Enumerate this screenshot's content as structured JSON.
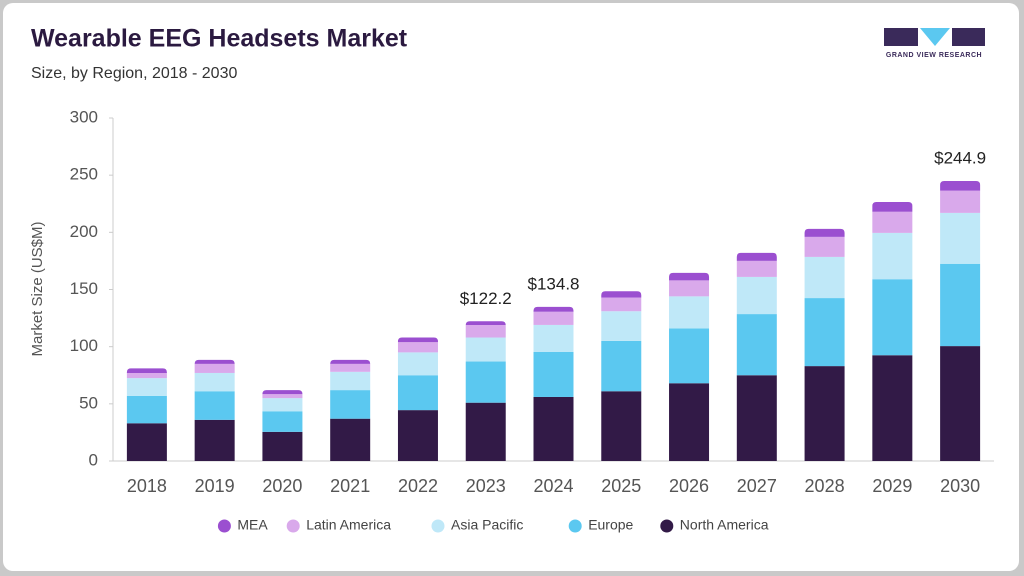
{
  "chart_data": {
    "type": "stacked-bar",
    "title": "Wearable EEG Headsets Market",
    "subtitle": "Size, by Region, 2018 - 2030",
    "source_logo": "GRAND VIEW RESEARCH",
    "y_label": "Market Size (US$M)",
    "categories": [
      "2018",
      "2019",
      "2020",
      "2021",
      "2022",
      "2023",
      "2024",
      "2025",
      "2026",
      "2027",
      "2028",
      "2029",
      "2030"
    ],
    "series": [
      {
        "name": "North America",
        "color": "#321a47",
        "values": [
          33,
          36,
          25.5,
          37,
          44.5,
          51,
          56,
          61,
          68,
          75,
          83,
          92.5,
          100.5
        ]
      },
      {
        "name": "Europe",
        "color": "#5bc8f0",
        "values": [
          24,
          25,
          18,
          25,
          30.5,
          36,
          39.5,
          44,
          48,
          53.5,
          59.5,
          66.5,
          72
        ]
      },
      {
        "name": "Asia Pacific",
        "color": "#bfe8f8",
        "values": [
          15.5,
          16,
          11.5,
          16,
          20,
          21,
          23.5,
          26,
          28,
          32.5,
          36,
          40.5,
          44.5
        ]
      },
      {
        "name": "Latin America",
        "color": "#d9a9eb",
        "values": [
          4.5,
          8,
          3.5,
          7,
          9,
          11,
          11.5,
          12,
          14,
          14,
          17.5,
          18.5,
          19.5
        ]
      },
      {
        "name": "MEA",
        "color": "#9b4fd0",
        "values": [
          4,
          3.5,
          3.5,
          3.5,
          4,
          3.2,
          4.3,
          5.5,
          6.5,
          7,
          7,
          8.5,
          8.4
        ]
      }
    ],
    "annotations": [
      {
        "x": "2023",
        "value": 122.2,
        "label": "$122.2"
      },
      {
        "x": "2024",
        "value": 134.8,
        "label": "$134.8"
      },
      {
        "x": "2030",
        "value": 244.9,
        "label": "$244.9"
      }
    ],
    "ylim": [
      0,
      300
    ],
    "yticks": [
      0,
      50,
      100,
      150,
      200,
      250,
      300
    ],
    "grid": false,
    "legend": "bottom"
  }
}
